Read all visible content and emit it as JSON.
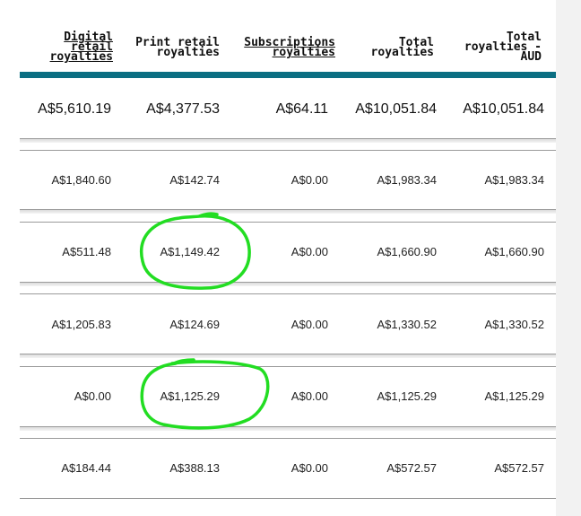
{
  "header": {
    "col1": [
      "Digital",
      "retail",
      "royalties"
    ],
    "col2": [
      "Print retail",
      "royalties"
    ],
    "col3": [
      "Subscriptions",
      "royalties"
    ],
    "col4": [
      "Total",
      "royalties"
    ],
    "col5": [
      "Total",
      "royalties -",
      "AUD"
    ]
  },
  "totals": [
    "A$5,610.19",
    "A$4,377.53",
    "A$64.11",
    "A$10,051.84",
    "A$10,051.84"
  ],
  "rows": [
    [
      "A$1,840.60",
      "A$142.74",
      "A$0.00",
      "A$1,983.34",
      "A$1,983.34"
    ],
    [
      "A$511.48",
      "A$1,149.42",
      "A$0.00",
      "A$1,660.90",
      "A$1,660.90"
    ],
    [
      "A$1,205.83",
      "A$124.69",
      "A$0.00",
      "A$1,330.52",
      "A$1,330.52"
    ],
    [
      "A$0.00",
      "A$1,125.29",
      "A$0.00",
      "A$1,125.29",
      "A$1,125.29"
    ],
    [
      "A$184.44",
      "A$388.13",
      "A$0.00",
      "A$572.57",
      "A$572.57"
    ]
  ],
  "annotation_color": "#22dd22",
  "header_bar_color": "#0b6e82"
}
